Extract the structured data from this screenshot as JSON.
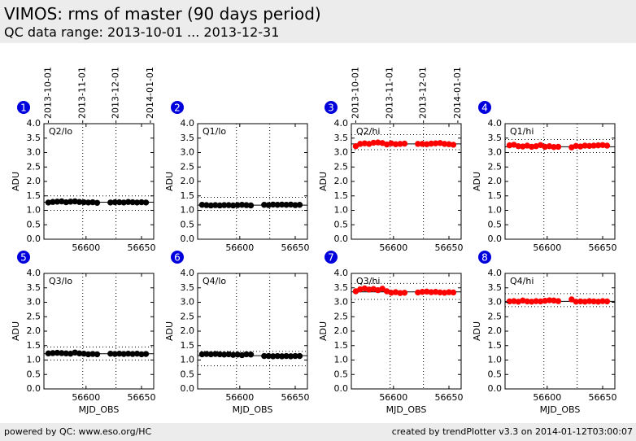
{
  "header": {
    "title": "VIMOS: rms of master (90 days period)",
    "subtitle": "QC data range: 2013-10-01 ... 2013-12-31"
  },
  "footer": {
    "left": "powered by QC: www.eso.org/HC",
    "right": "created by trendPlotter v3.3 on 2014-01-12T03:00:07"
  },
  "chart_data": [
    {
      "type": "scatter",
      "label": "1",
      "title": "Q2/lo",
      "y_label": "ADU",
      "color": "#000000",
      "x": [
        56566,
        56570,
        56574,
        56578,
        56582,
        56586,
        56590,
        56594,
        56598,
        56602,
        56606,
        56610,
        56622,
        56626,
        56630,
        56634,
        56638,
        56642,
        56646,
        56650,
        56654
      ],
      "values": [
        1.27,
        1.29,
        1.3,
        1.31,
        1.28,
        1.3,
        1.31,
        1.29,
        1.28,
        1.27,
        1.28,
        1.26,
        1.27,
        1.28,
        1.28,
        1.27,
        1.29,
        1.28,
        1.27,
        1.28,
        1.27
      ],
      "reference": {
        "upper": 1.5,
        "median": 1.28,
        "lower": 1.0
      },
      "date_lines": [
        56597,
        56627
      ],
      "date_ticks": [
        {
          "value": 56566,
          "label": "2013-10-01"
        },
        {
          "value": 56597,
          "label": "2013-11-01"
        },
        {
          "value": 56627,
          "label": "2013-12-01"
        },
        {
          "value": 56658,
          "label": "2014-01-01"
        }
      ],
      "xlim": [
        56562,
        56661
      ],
      "xticks": [
        56600,
        56650
      ],
      "ylim": [
        0,
        4
      ],
      "yticks": [
        {
          "value": 0,
          "label": "0.0"
        },
        {
          "value": 0.5,
          "label": "0.5"
        },
        {
          "value": 1,
          "label": "1.0"
        },
        {
          "value": 1.5,
          "label": "1.5"
        },
        {
          "value": 2,
          "label": "2.0"
        },
        {
          "value": 2.5,
          "label": "2.5"
        },
        {
          "value": 3,
          "label": "3.0"
        },
        {
          "value": 3.5,
          "label": "3.5"
        },
        {
          "value": 4,
          "label": "4.0"
        }
      ]
    },
    {
      "type": "scatter",
      "label": "2",
      "title": "Q1/lo",
      "y_label": "ADU",
      "color": "#000000",
      "x": [
        56566,
        56570,
        56574,
        56578,
        56582,
        56586,
        56590,
        56594,
        56598,
        56602,
        56606,
        56610,
        56622,
        56626,
        56630,
        56634,
        56638,
        56642,
        56646,
        56650,
        56654
      ],
      "values": [
        1.19,
        1.18,
        1.17,
        1.18,
        1.17,
        1.18,
        1.18,
        1.17,
        1.18,
        1.19,
        1.18,
        1.17,
        1.19,
        1.18,
        1.2,
        1.19,
        1.2,
        1.19,
        1.2,
        1.18,
        1.19
      ],
      "reference": {
        "upper": 1.45,
        "median": 1.18,
        "lower": 1.0
      },
      "date_lines": [
        56597,
        56627
      ],
      "xlim": [
        56562,
        56661
      ],
      "xticks": [
        56600,
        56650
      ],
      "ylim": [
        0,
        4
      ],
      "yticks": [
        {
          "value": 0,
          "label": "0.0"
        },
        {
          "value": 0.5,
          "label": "0.5"
        },
        {
          "value": 1,
          "label": "1.0"
        },
        {
          "value": 1.5,
          "label": "1.5"
        },
        {
          "value": 2,
          "label": "2.0"
        },
        {
          "value": 2.5,
          "label": "2.5"
        },
        {
          "value": 3,
          "label": "3.0"
        },
        {
          "value": 3.5,
          "label": "3.5"
        },
        {
          "value": 4,
          "label": "4.0"
        }
      ]
    },
    {
      "type": "scatter",
      "label": "3",
      "title": "Q2/hi",
      "y_label": "ADU",
      "color": "#ff0000",
      "x": [
        56566,
        56570,
        56574,
        56578,
        56582,
        56586,
        56590,
        56594,
        56598,
        56602,
        56606,
        56610,
        56622,
        56626,
        56630,
        56634,
        56638,
        56642,
        56646,
        56650,
        56654
      ],
      "values": [
        3.22,
        3.3,
        3.32,
        3.3,
        3.34,
        3.35,
        3.33,
        3.28,
        3.32,
        3.29,
        3.3,
        3.31,
        3.3,
        3.3,
        3.29,
        3.31,
        3.32,
        3.33,
        3.3,
        3.29,
        3.27
      ],
      "reference": {
        "upper": 3.62,
        "median": 3.3,
        "lower": 3.1
      },
      "date_lines": [
        56597,
        56627
      ],
      "date_ticks": [
        {
          "value": 56566,
          "label": "2013-10-01"
        },
        {
          "value": 56597,
          "label": "2013-11-01"
        },
        {
          "value": 56627,
          "label": "2013-12-01"
        },
        {
          "value": 56658,
          "label": "2014-01-01"
        }
      ],
      "xlim": [
        56562,
        56661
      ],
      "xticks": [
        56600,
        56650
      ],
      "ylim": [
        0,
        4
      ],
      "yticks": [
        {
          "value": 0,
          "label": "0.0"
        },
        {
          "value": 0.5,
          "label": "0.5"
        },
        {
          "value": 1,
          "label": "1.0"
        },
        {
          "value": 1.5,
          "label": "1.5"
        },
        {
          "value": 2,
          "label": "2.0"
        },
        {
          "value": 2.5,
          "label": "2.5"
        },
        {
          "value": 3,
          "label": "3.0"
        },
        {
          "value": 3.5,
          "label": "3.5"
        },
        {
          "value": 4,
          "label": "4.0"
        }
      ]
    },
    {
      "type": "scatter",
      "label": "4",
      "title": "Q1/hi",
      "y_label": "ADU",
      "color": "#ff0000",
      "x": [
        56566,
        56570,
        56574,
        56578,
        56582,
        56586,
        56590,
        56594,
        56598,
        56602,
        56606,
        56610,
        56622,
        56626,
        56630,
        56634,
        56638,
        56642,
        56646,
        56650,
        56654
      ],
      "values": [
        3.25,
        3.27,
        3.22,
        3.21,
        3.24,
        3.2,
        3.22,
        3.26,
        3.2,
        3.22,
        3.19,
        3.2,
        3.18,
        3.23,
        3.21,
        3.24,
        3.23,
        3.24,
        3.25,
        3.26,
        3.24
      ],
      "reference": {
        "upper": 3.45,
        "median": 3.2,
        "lower": 3.0
      },
      "date_lines": [
        56597,
        56627
      ],
      "xlim": [
        56562,
        56661
      ],
      "xticks": [
        56600,
        56650
      ],
      "ylim": [
        0,
        4
      ],
      "yticks": [
        {
          "value": 0,
          "label": "0.0"
        },
        {
          "value": 0.5,
          "label": "0.5"
        },
        {
          "value": 1,
          "label": "1.0"
        },
        {
          "value": 1.5,
          "label": "1.5"
        },
        {
          "value": 2,
          "label": "2.0"
        },
        {
          "value": 2.5,
          "label": "2.5"
        },
        {
          "value": 3,
          "label": "3.0"
        },
        {
          "value": 3.5,
          "label": "3.5"
        },
        {
          "value": 4,
          "label": "4.0"
        }
      ]
    },
    {
      "type": "scatter",
      "label": "5",
      "title": "Q3/lo",
      "y_label": "ADU",
      "x_label": "MJD_OBS",
      "color": "#000000",
      "x": [
        56566,
        56570,
        56574,
        56578,
        56582,
        56586,
        56590,
        56594,
        56598,
        56602,
        56606,
        56610,
        56622,
        56626,
        56630,
        56634,
        56638,
        56642,
        56646,
        56650,
        56654
      ],
      "values": [
        1.23,
        1.24,
        1.25,
        1.24,
        1.23,
        1.22,
        1.26,
        1.23,
        1.22,
        1.2,
        1.21,
        1.2,
        1.22,
        1.21,
        1.22,
        1.21,
        1.22,
        1.21,
        1.22,
        1.2,
        1.21
      ],
      "reference": {
        "upper": 1.45,
        "median": 1.22,
        "lower": 1.0
      },
      "date_lines": [
        56597,
        56627
      ],
      "xlim": [
        56562,
        56661
      ],
      "xticks": [
        56600,
        56650
      ],
      "ylim": [
        0,
        4
      ],
      "yticks": [
        {
          "value": 0,
          "label": "0.0"
        },
        {
          "value": 0.5,
          "label": "0.5"
        },
        {
          "value": 1,
          "label": "1.0"
        },
        {
          "value": 1.5,
          "label": "1.5"
        },
        {
          "value": 2,
          "label": "2.0"
        },
        {
          "value": 2.5,
          "label": "2.5"
        },
        {
          "value": 3,
          "label": "3.0"
        },
        {
          "value": 3.5,
          "label": "3.5"
        },
        {
          "value": 4,
          "label": "4.0"
        }
      ]
    },
    {
      "type": "scatter",
      "label": "6",
      "title": "Q4/lo",
      "y_label": "ADU",
      "x_label": "MJD_OBS",
      "color": "#000000",
      "x": [
        56566,
        56570,
        56574,
        56578,
        56582,
        56586,
        56590,
        56594,
        56598,
        56602,
        56606,
        56610,
        56622,
        56626,
        56630,
        56634,
        56638,
        56642,
        56646,
        56650,
        56654
      ],
      "values": [
        1.2,
        1.21,
        1.2,
        1.21,
        1.2,
        1.19,
        1.2,
        1.18,
        1.19,
        1.17,
        1.2,
        1.19,
        1.14,
        1.14,
        1.13,
        1.14,
        1.13,
        1.14,
        1.13,
        1.14,
        1.14
      ],
      "reference": {
        "upper": 1.3,
        "median": 1.15,
        "lower": 0.8
      },
      "date_lines": [
        56597,
        56627
      ],
      "xlim": [
        56562,
        56661
      ],
      "xticks": [
        56600,
        56650
      ],
      "ylim": [
        0,
        4
      ],
      "yticks": [
        {
          "value": 0,
          "label": "0.0"
        },
        {
          "value": 0.5,
          "label": "0.5"
        },
        {
          "value": 1,
          "label": "1.0"
        },
        {
          "value": 1.5,
          "label": "1.5"
        },
        {
          "value": 2,
          "label": "2.0"
        },
        {
          "value": 2.5,
          "label": "2.5"
        },
        {
          "value": 3,
          "label": "3.0"
        },
        {
          "value": 3.5,
          "label": "3.5"
        },
        {
          "value": 4,
          "label": "4.0"
        }
      ]
    },
    {
      "type": "scatter",
      "label": "7",
      "title": "Q3/hi",
      "y_label": "ADU",
      "x_label": "MJD_OBS",
      "color": "#ff0000",
      "x": [
        56566,
        56570,
        56574,
        56578,
        56582,
        56586,
        56590,
        56594,
        56598,
        56602,
        56606,
        56610,
        56622,
        56626,
        56630,
        56634,
        56638,
        56642,
        56646,
        56650,
        56654
      ],
      "values": [
        3.38,
        3.45,
        3.48,
        3.44,
        3.46,
        3.42,
        3.47,
        3.38,
        3.33,
        3.35,
        3.32,
        3.33,
        3.34,
        3.36,
        3.37,
        3.35,
        3.36,
        3.34,
        3.33,
        3.35,
        3.34
      ],
      "reference": {
        "upper": 3.65,
        "median": 3.36,
        "lower": 3.1
      },
      "date_lines": [
        56597,
        56627
      ],
      "xlim": [
        56562,
        56661
      ],
      "xticks": [
        56600,
        56650
      ],
      "ylim": [
        0,
        4
      ],
      "yticks": [
        {
          "value": 0,
          "label": "0.0"
        },
        {
          "value": 0.5,
          "label": "0.5"
        },
        {
          "value": 1,
          "label": "1.0"
        },
        {
          "value": 1.5,
          "label": "1.5"
        },
        {
          "value": 2,
          "label": "2.0"
        },
        {
          "value": 2.5,
          "label": "2.5"
        },
        {
          "value": 3,
          "label": "3.0"
        },
        {
          "value": 3.5,
          "label": "3.5"
        },
        {
          "value": 4,
          "label": "4.0"
        }
      ]
    },
    {
      "type": "scatter",
      "label": "8",
      "title": "Q4/hi",
      "y_label": "ADU",
      "x_label": "MJD_OBS",
      "color": "#ff0000",
      "x": [
        56566,
        56570,
        56574,
        56578,
        56582,
        56586,
        56590,
        56594,
        56598,
        56602,
        56606,
        56610,
        56622,
        56626,
        56630,
        56634,
        56638,
        56642,
        56646,
        56650,
        56654
      ],
      "values": [
        3.03,
        3.04,
        3.02,
        3.06,
        3.03,
        3.02,
        3.04,
        3.03,
        3.05,
        3.07,
        3.06,
        3.04,
        3.1,
        3.02,
        3.03,
        3.02,
        3.04,
        3.03,
        3.02,
        3.04,
        3.03
      ],
      "reference": {
        "upper": 3.3,
        "median": 3.03,
        "lower": 2.85
      },
      "date_lines": [
        56597,
        56627
      ],
      "xlim": [
        56562,
        56661
      ],
      "xticks": [
        56600,
        56650
      ],
      "ylim": [
        0,
        4
      ],
      "yticks": [
        {
          "value": 0,
          "label": "0.0"
        },
        {
          "value": 0.5,
          "label": "0.5"
        },
        {
          "value": 1,
          "label": "1.0"
        },
        {
          "value": 1.5,
          "label": "1.5"
        },
        {
          "value": 2,
          "label": "2.0"
        },
        {
          "value": 2.5,
          "label": "2.5"
        },
        {
          "value": 3,
          "label": "3.0"
        },
        {
          "value": 3.5,
          "label": "3.5"
        },
        {
          "value": 4,
          "label": "4.0"
        }
      ]
    }
  ]
}
